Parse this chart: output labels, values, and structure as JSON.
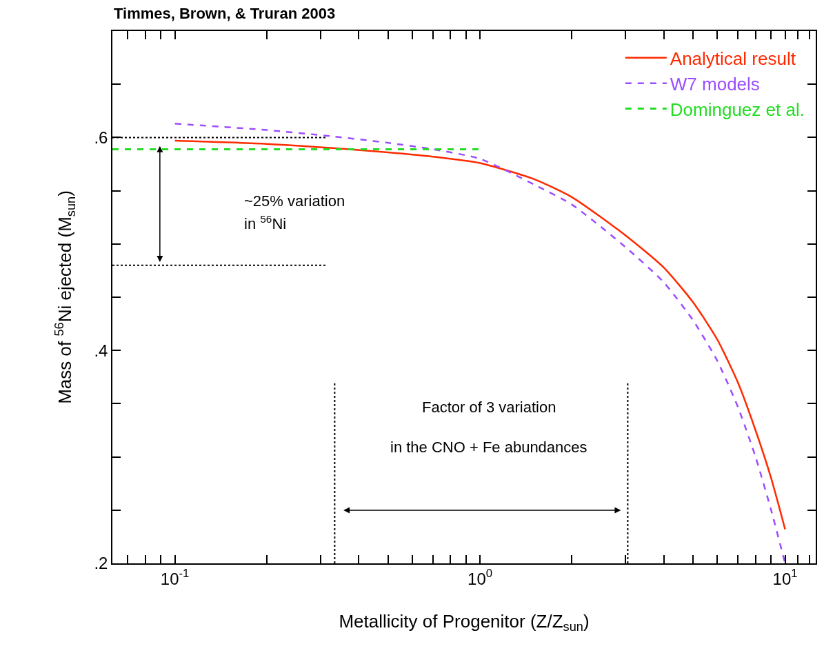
{
  "chart_data": {
    "type": "line",
    "title": "Timmes, Brown, & Truran 2003",
    "xlabel": "Metallicity of Progenitor (Z/Z$_{sun}$)",
    "ylabel": "Mass of $^{56}$Ni ejected (M$_{sun}$)",
    "log": "x",
    "xlim": [
      0.0624,
      12.6
    ],
    "ylim": [
      0.2,
      0.7
    ],
    "xticks": [
      {
        "value": 0.07,
        "label": null
      },
      {
        "value": 0.08,
        "label": null
      },
      {
        "value": 0.09,
        "label": null
      },
      {
        "value": 0.1,
        "label": "10$^{-1}$"
      },
      {
        "value": 0.2,
        "label": null
      },
      {
        "value": 0.3,
        "label": null
      },
      {
        "value": 0.4,
        "label": null
      },
      {
        "value": 0.5,
        "label": null
      },
      {
        "value": 0.6,
        "label": null
      },
      {
        "value": 0.7,
        "label": null
      },
      {
        "value": 0.8,
        "label": null
      },
      {
        "value": 0.9,
        "label": null
      },
      {
        "value": 1,
        "label": "10$^{0}$"
      },
      {
        "value": 2,
        "label": null
      },
      {
        "value": 3,
        "label": null
      },
      {
        "value": 4,
        "label": null
      },
      {
        "value": 5,
        "label": null
      },
      {
        "value": 6,
        "label": null
      },
      {
        "value": 7,
        "label": null
      },
      {
        "value": 8,
        "label": null
      },
      {
        "value": 9,
        "label": null
      },
      {
        "value": 10,
        "label": "10$^{1}$"
      },
      {
        "value": 11,
        "label": null
      },
      {
        "value": 12,
        "label": null
      }
    ],
    "yticks": [
      {
        "value": 0.2,
        "label": ".2"
      },
      {
        "value": 0.25,
        "label": null
      },
      {
        "value": 0.3,
        "label": null
      },
      {
        "value": 0.35,
        "label": null
      },
      {
        "value": 0.4,
        "label": ".4"
      },
      {
        "value": 0.45,
        "label": null
      },
      {
        "value": 0.5,
        "label": null
      },
      {
        "value": 0.55,
        "label": null
      },
      {
        "value": 0.6,
        "label": ".6"
      },
      {
        "value": 0.65,
        "label": null
      },
      {
        "value": 0.7,
        "label": null
      }
    ],
    "legend": "top right",
    "marker": "none",
    "series": [
      {
        "name": "Analytical result",
        "color": "#ff2a00",
        "line_style": "solid",
        "x": [
          0.1,
          0.2,
          0.33,
          0.5,
          0.7,
          1,
          1.5,
          2,
          3,
          4,
          5,
          6,
          7,
          8,
          9,
          10
        ],
        "values": [
          0.597,
          0.594,
          0.59,
          0.586,
          0.582,
          0.576,
          0.561,
          0.544,
          0.508,
          0.478,
          0.445,
          0.41,
          0.37,
          0.325,
          0.28,
          0.232
        ]
      },
      {
        "name": "W7 models",
        "color": "#9b4dff",
        "line_style": "dashed",
        "x": [
          0.1,
          0.2,
          0.33,
          0.5,
          0.7,
          1,
          1.5,
          2,
          3,
          4,
          5,
          6,
          7,
          8,
          9,
          10
        ],
        "values": [
          0.613,
          0.607,
          0.601,
          0.595,
          0.589,
          0.58,
          0.556,
          0.537,
          0.497,
          0.464,
          0.428,
          0.39,
          0.347,
          0.3,
          0.25,
          0.2
        ]
      },
      {
        "name": "Dominguez et al.",
        "color": "#22dd22",
        "line_style": "dashed",
        "x": [
          0.0624,
          1
        ],
        "values": [
          0.589,
          0.589
        ]
      },
      {
        "color": "#000000",
        "line_style": "dotted",
        "x": [
          0.0624,
          0.314
        ],
        "values": [
          0.6,
          0.6
        ]
      },
      {
        "color": "#000000",
        "line_style": "dotted",
        "x": [
          0.0624,
          0.314
        ],
        "values": [
          0.48,
          0.48
        ]
      },
      {
        "color": "#000000",
        "line_style": "dotted",
        "x": [
          0.334,
          0.334
        ],
        "values": [
          0.2,
          0.37
        ]
      },
      {
        "color": "#000000",
        "line_style": "dotted",
        "x": [
          3.05,
          3.05
        ],
        "values": [
          0.2,
          0.37
        ]
      }
    ],
    "annotations": [
      "~25% variation",
      "in $^{56}$Ni",
      "Factor of 3 variation",
      "in the CNO + Fe abundances"
    ]
  }
}
